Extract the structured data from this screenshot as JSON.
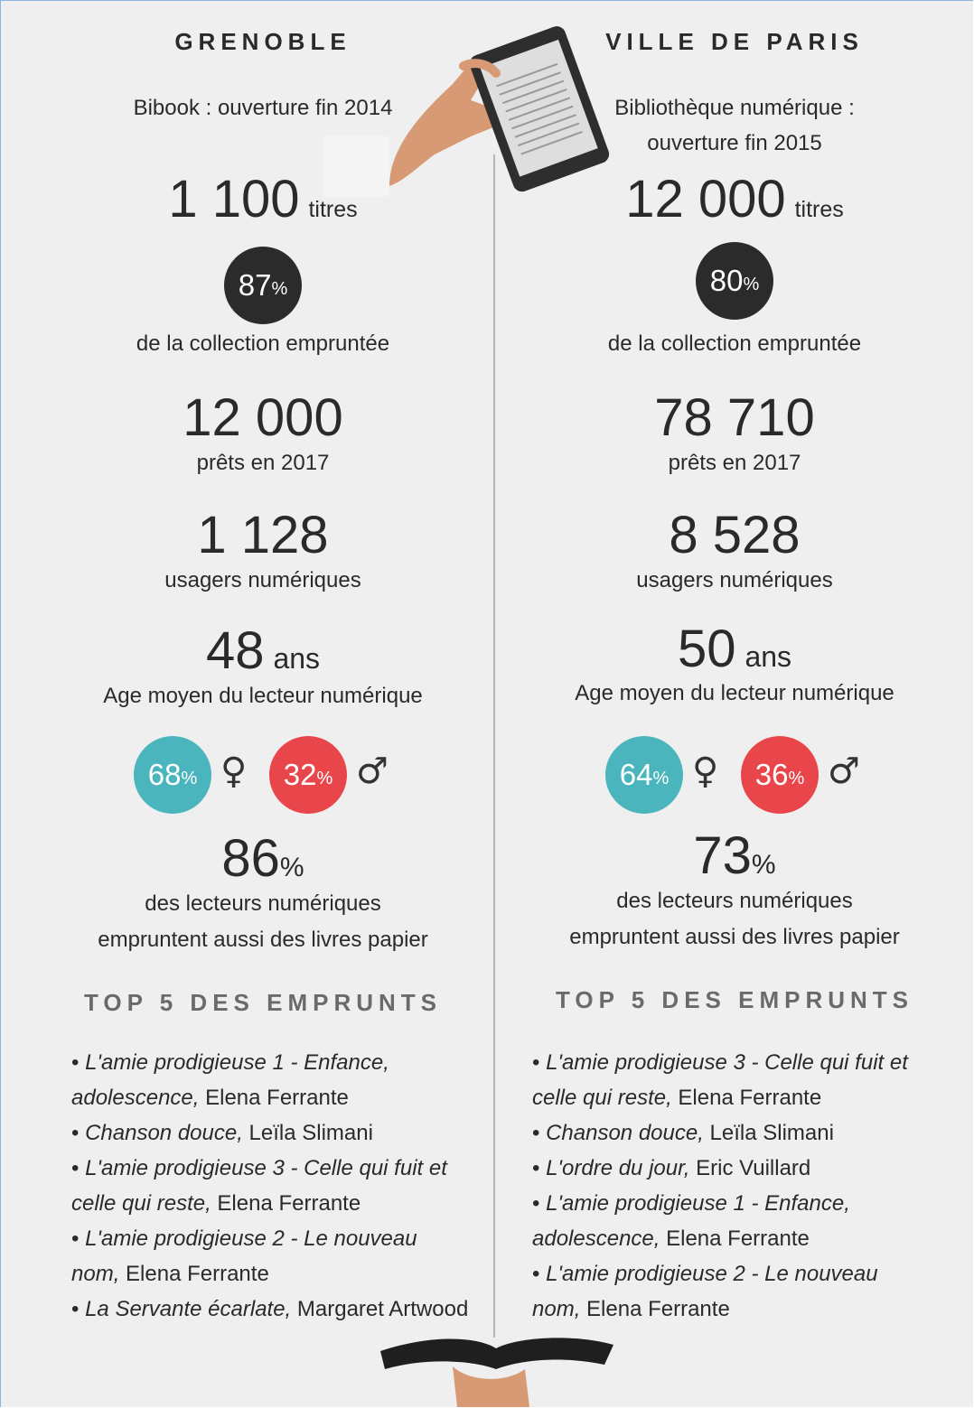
{
  "columns": [
    {
      "title": "GRENOBLE",
      "subtitle": "Bibook : ouverture fin 2014",
      "titles": {
        "value": "1 100",
        "unit": "titres"
      },
      "borrowed": {
        "value": "87",
        "unit": "%",
        "label": "de la collection empruntée"
      },
      "loans": {
        "value": "12 000",
        "label": "prêts en 2017"
      },
      "users": {
        "value": "1 128",
        "label": "usagers numériques"
      },
      "age": {
        "value": "48",
        "unit": "ans",
        "label": "Age moyen du lecteur numérique"
      },
      "gender": {
        "female": "68",
        "female_unit": "%",
        "female_symbol": "♀",
        "male": "32",
        "male_unit": "%",
        "male_symbol": "♂"
      },
      "paper": {
        "value": "86",
        "unit": "%",
        "label": [
          "des lecteurs numériques",
          "empruntent aussi des livres papier"
        ]
      },
      "top_header": "TOP 5 DES EMPRUNTS",
      "top": [
        {
          "title": "L'amie prodigieuse 1 - Enfance, adolescence,",
          "author": "Elena Ferrante"
        },
        {
          "title": "Chanson douce,",
          "author": "Leïla Slimani"
        },
        {
          "title": "L'amie prodigieuse 3 - Celle qui fuit et celle qui reste,",
          "author": "Elena Ferrante"
        },
        {
          "title": "L'amie prodigieuse 2 - Le nouveau nom,",
          "author": "Elena Ferrante"
        },
        {
          "title": "La Servante écarlate,",
          "author": "Margaret Artwood"
        }
      ]
    },
    {
      "title": "VILLE DE PARIS",
      "subtitle": "Bibliothèque numérique : ouverture fin 2015",
      "titles": {
        "value": "12 000",
        "unit": "titres"
      },
      "borrowed": {
        "value": "80",
        "unit": "%",
        "label": "de la collection empruntée"
      },
      "loans": {
        "value": "78 710",
        "label": "prêts en 2017"
      },
      "users": {
        "value": "8 528",
        "label": "usagers numériques"
      },
      "age": {
        "value": "50",
        "unit": "ans",
        "label": "Age moyen du lecteur numérique"
      },
      "gender": {
        "female": "64",
        "female_unit": "%",
        "female_symbol": "♀",
        "male": "36",
        "male_unit": "%",
        "male_symbol": "♂"
      },
      "paper": {
        "value": "73",
        "unit": "%",
        "label": [
          "des lecteurs numériques",
          "empruntent aussi des livres papier"
        ]
      },
      "top_header": "TOP 5 DES EMPRUNTS",
      "top": [
        {
          "title": "L'amie prodigieuse 3 - Celle qui fuit et celle qui reste,",
          "author": "Elena Ferrante"
        },
        {
          "title": "Chanson douce,",
          "author": "Leïla Slimani"
        },
        {
          "title": "L'ordre du jour,",
          "author": "Eric Vuillard"
        },
        {
          "title": "L'amie prodigieuse 1 - Enfance, adolescence,",
          "author": "Elena Ferrante"
        },
        {
          "title": "L'amie prodigieuse 2 - Le nouveau nom,",
          "author": "Elena Ferrante"
        }
      ]
    }
  ]
}
